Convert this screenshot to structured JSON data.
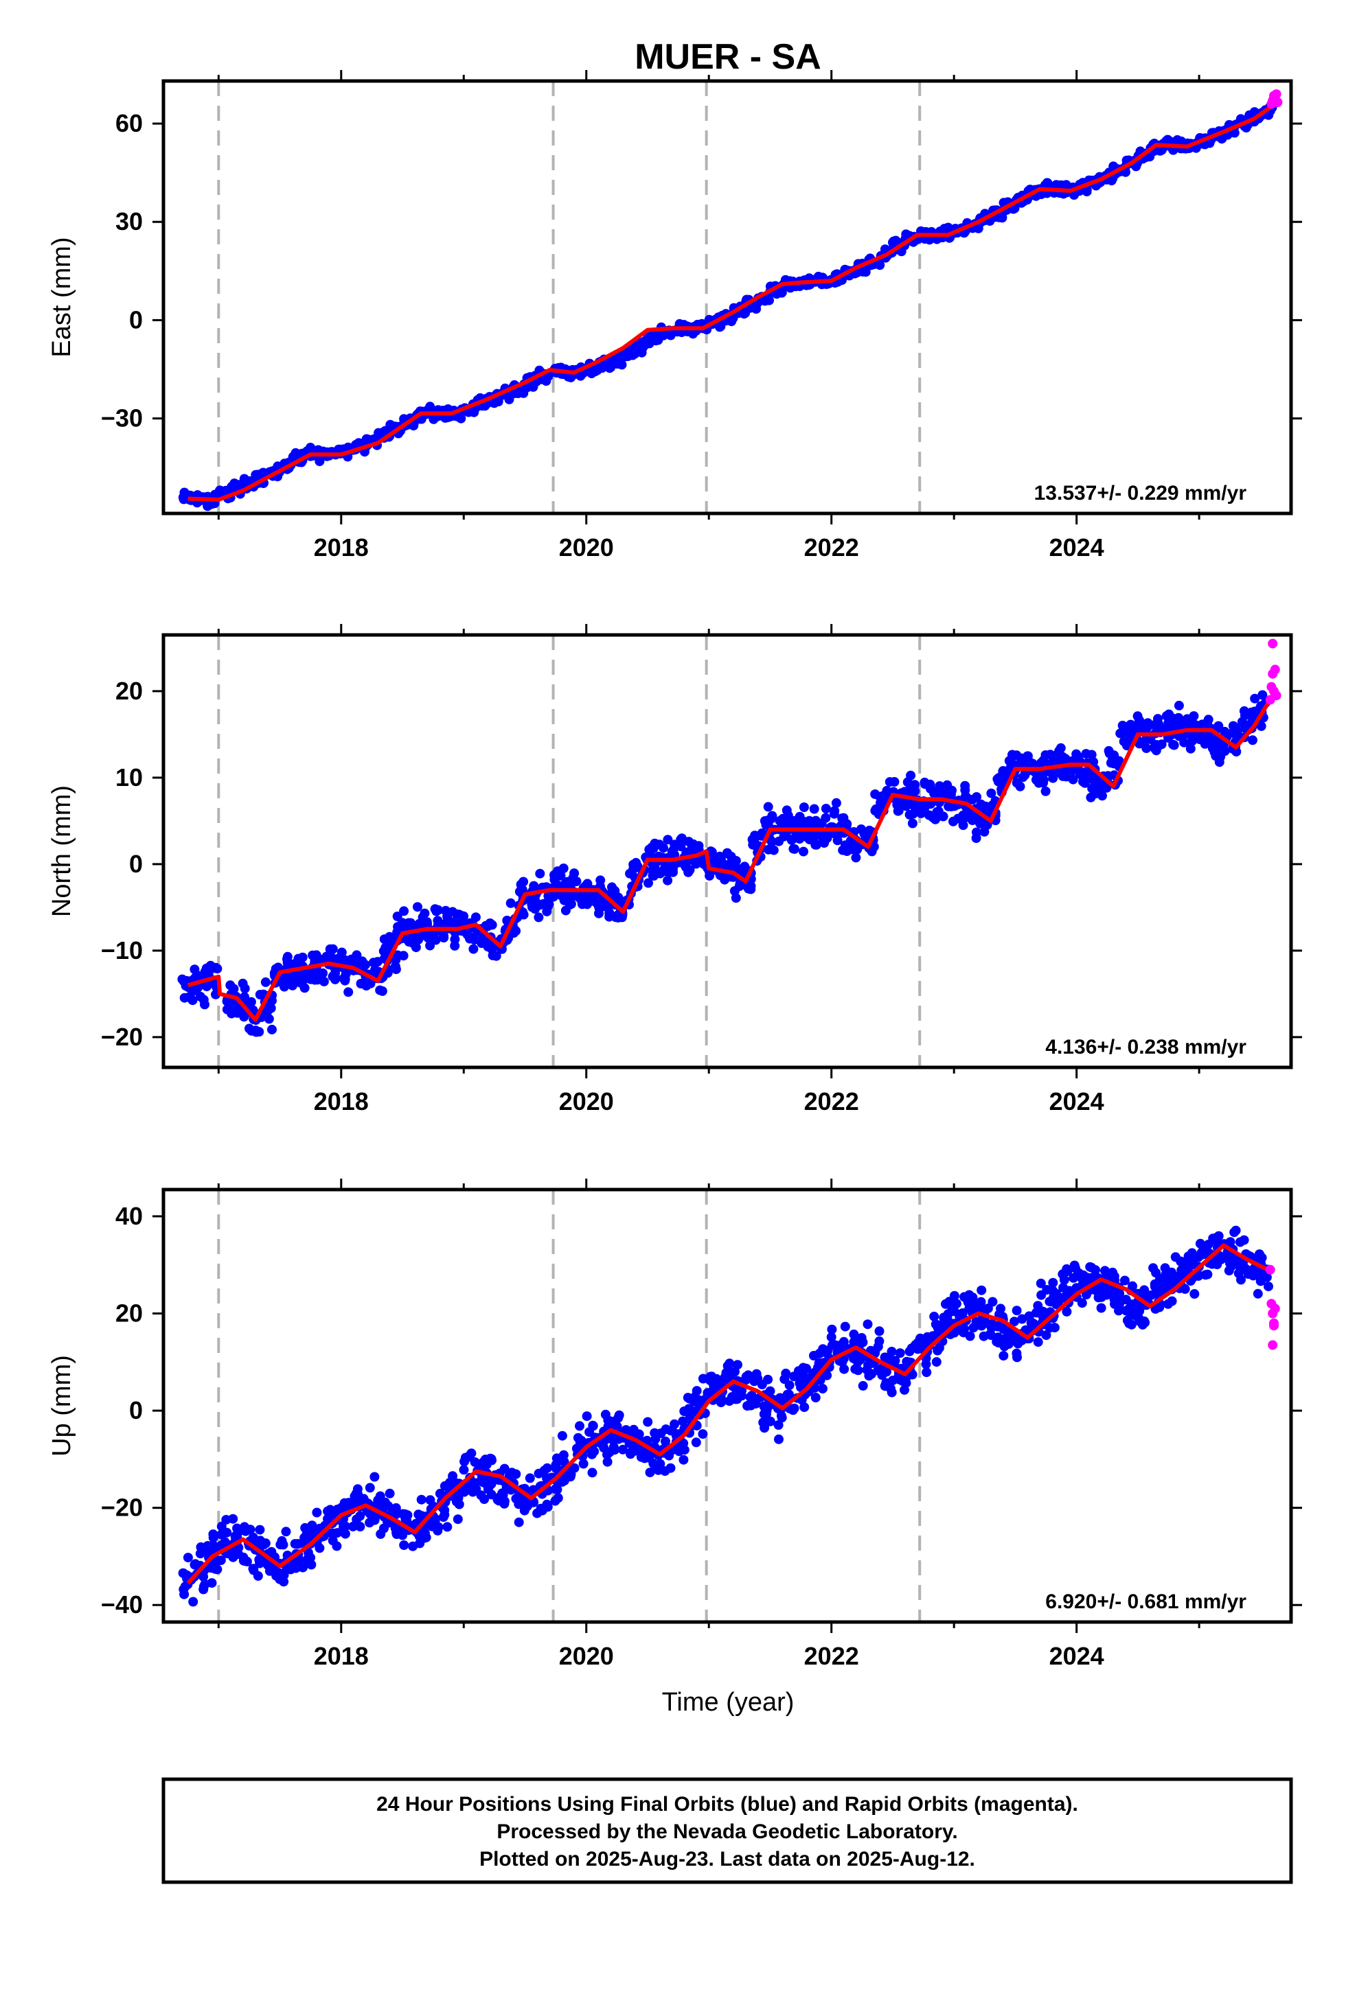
{
  "chart_data": {
    "type": "scatter",
    "title": "MUER - SA",
    "xlabel": "Time (year)",
    "xlim": [
      2016.55,
      2025.75
    ],
    "x_ticks": [
      2018,
      2020,
      2022,
      2024
    ],
    "x_tick_labels": [
      "2018",
      "2020",
      "2022",
      "2024"
    ],
    "event_lines_x": [
      2017.0,
      2019.73,
      2020.98,
      2022.72
    ],
    "legend": "none",
    "grid": false,
    "colors": {
      "final": "#0000ff",
      "rapid": "#ff00ff",
      "fit": "#ff0000",
      "event_line": "#b3b3b3"
    },
    "panels": [
      {
        "ylabel": "East (mm)",
        "ylim": [
          -59,
          73
        ],
        "y_ticks": [
          -30,
          0,
          30,
          60
        ],
        "y_tick_labels": [
          "−30",
          "0",
          "30",
          "60"
        ],
        "rate_label": "13.537+/- 0.229 mm/yr",
        "fit_x": [
          2016.75,
          2017.0,
          2017.2,
          2017.4,
          2017.6,
          2017.75,
          2018.0,
          2018.3,
          2018.65,
          2018.9,
          2019.2,
          2019.5,
          2019.7,
          2019.9,
          2020.1,
          2020.3,
          2020.5,
          2020.7,
          2020.95,
          2021.2,
          2021.4,
          2021.6,
          2021.75,
          2022.0,
          2022.2,
          2022.45,
          2022.7,
          2022.95,
          2023.2,
          2023.45,
          2023.7,
          2023.95,
          2024.2,
          2024.45,
          2024.65,
          2024.9,
          2025.2,
          2025.45,
          2025.6
        ],
        "fit_y": [
          -54.5,
          -54.8,
          -52.0,
          -48.0,
          -44.0,
          -41.0,
          -41.0,
          -37.5,
          -28.5,
          -28.5,
          -24.0,
          -19.0,
          -15.2,
          -16.0,
          -12.5,
          -8.5,
          -3.0,
          -2.5,
          -2.5,
          2.5,
          7.0,
          11.0,
          11.5,
          12.0,
          16.0,
          20.0,
          26.0,
          26.0,
          30.0,
          35.0,
          40.0,
          39.5,
          43.0,
          48.0,
          53.5,
          53.0,
          57.5,
          61.5,
          65.5
        ],
        "data_x": [
          2016.75,
          2016.85,
          2016.95,
          2017.05,
          2017.15,
          2017.25,
          2017.35,
          2017.45,
          2017.55,
          2017.65,
          2017.75,
          2017.85,
          2017.95,
          2018.05,
          2018.15,
          2018.25,
          2018.35,
          2018.45,
          2018.55,
          2018.65,
          2018.75,
          2018.85,
          2018.95,
          2019.05,
          2019.15,
          2019.25,
          2019.35,
          2019.45,
          2019.55,
          2019.65,
          2019.75,
          2019.85,
          2019.95,
          2020.05,
          2020.15,
          2020.25,
          2020.35,
          2020.45,
          2020.55,
          2020.65,
          2020.75,
          2020.85,
          2020.95,
          2021.05,
          2021.15,
          2021.25,
          2021.35,
          2021.45,
          2021.55,
          2021.65,
          2021.75,
          2021.85,
          2021.95,
          2022.05,
          2022.15,
          2022.25,
          2022.35,
          2022.45,
          2022.55,
          2022.65,
          2022.75,
          2022.85,
          2022.95,
          2023.05,
          2023.15,
          2023.25,
          2023.35,
          2023.45,
          2023.55,
          2023.65,
          2023.75,
          2023.85,
          2023.95,
          2024.05,
          2024.15,
          2024.25,
          2024.35,
          2024.45,
          2024.55,
          2024.65,
          2024.75,
          2024.85,
          2024.95,
          2025.05,
          2025.15,
          2025.25,
          2025.35,
          2025.45,
          2025.55
        ],
        "data_y": [
          -54.2,
          -54.6,
          -55.0,
          -53.1,
          -51.4,
          -49.8,
          -48.2,
          -46.1,
          -44.3,
          -42.0,
          -40.8,
          -41.2,
          -40.5,
          -39.7,
          -38.4,
          -37.0,
          -35.1,
          -33.2,
          -31.0,
          -28.9,
          -28.2,
          -28.6,
          -28.1,
          -27.0,
          -25.3,
          -23.9,
          -22.4,
          -20.6,
          -18.8,
          -16.9,
          -15.4,
          -15.8,
          -16.2,
          -15.0,
          -13.6,
          -11.9,
          -10.3,
          -8.2,
          -5.9,
          -3.7,
          -2.6,
          -2.7,
          -2.4,
          -0.9,
          0.9,
          2.6,
          4.5,
          6.8,
          8.9,
          10.7,
          11.4,
          11.7,
          11.9,
          12.8,
          14.6,
          16.0,
          17.7,
          20.1,
          22.6,
          24.9,
          26.1,
          25.9,
          26.2,
          27.4,
          28.8,
          30.5,
          32.4,
          34.8,
          37.0,
          39.2,
          40.1,
          39.8,
          39.6,
          40.7,
          42.3,
          44.1,
          46.0,
          48.1,
          50.5,
          52.9,
          53.6,
          53.3,
          53.2,
          54.6,
          56.4,
          58.1,
          60.0,
          61.8,
          63.9
        ],
        "rapid_x": [
          2025.59,
          2025.6,
          2025.61,
          2025.62,
          2025.63,
          2025.64
        ],
        "rapid_y": [
          66.0,
          67.0,
          68.5,
          67.5,
          69.0,
          66.5
        ]
      },
      {
        "ylabel": "North (mm)",
        "ylim": [
          -23.5,
          26.5
        ],
        "y_ticks": [
          -20,
          -10,
          0,
          10,
          20
        ],
        "y_tick_labels": [
          "−20",
          "−10",
          "0",
          "10",
          "20"
        ],
        "rate_label": "4.136+/- 0.238 mm/yr",
        "fit_x": [
          2016.75,
          2017.0,
          2017.01,
          2017.15,
          2017.3,
          2017.5,
          2017.7,
          2017.9,
          2018.1,
          2018.3,
          2018.5,
          2018.7,
          2018.95,
          2019.1,
          2019.3,
          2019.5,
          2019.7,
          2019.9,
          2020.1,
          2020.3,
          2020.5,
          2020.7,
          2020.9,
          2020.98,
          2021.0,
          2021.2,
          2021.3,
          2021.5,
          2021.7,
          2021.9,
          2022.1,
          2022.3,
          2022.5,
          2022.72,
          2022.9,
          2023.1,
          2023.3,
          2023.5,
          2023.7,
          2023.95,
          2024.1,
          2024.3,
          2024.5,
          2024.7,
          2024.9,
          2025.1,
          2025.3,
          2025.45,
          2025.6
        ],
        "fit_y": [
          -14.0,
          -13.0,
          -15.0,
          -15.5,
          -18.0,
          -12.5,
          -12.0,
          -11.5,
          -12.0,
          -13.5,
          -8.0,
          -7.5,
          -7.5,
          -7.0,
          -9.5,
          -3.5,
          -3.0,
          -3.0,
          -3.0,
          -5.5,
          0.5,
          0.5,
          1.0,
          1.5,
          -0.5,
          -1.0,
          -2.0,
          4.0,
          4.0,
          4.0,
          4.0,
          2.0,
          8.0,
          7.5,
          7.5,
          7.0,
          5.0,
          11.0,
          11.0,
          11.5,
          11.5,
          9.0,
          15.0,
          15.0,
          15.5,
          15.5,
          13.5,
          16.0,
          19.5
        ],
        "data_x": [
          2016.75,
          2016.85,
          2016.95,
          2017.1,
          2017.2,
          2017.3,
          2017.4,
          2017.5,
          2017.6,
          2017.7,
          2017.8,
          2017.9,
          2018.0,
          2018.1,
          2018.2,
          2018.3,
          2018.4,
          2018.5,
          2018.6,
          2018.7,
          2018.8,
          2018.9,
          2019.0,
          2019.1,
          2019.2,
          2019.3,
          2019.4,
          2019.5,
          2019.6,
          2019.7,
          2019.8,
          2019.9,
          2020.0,
          2020.1,
          2020.2,
          2020.3,
          2020.4,
          2020.5,
          2020.6,
          2020.7,
          2020.8,
          2020.9,
          2021.0,
          2021.1,
          2021.2,
          2021.3,
          2021.4,
          2021.5,
          2021.6,
          2021.7,
          2021.8,
          2021.9,
          2022.0,
          2022.1,
          2022.2,
          2022.3,
          2022.4,
          2022.5,
          2022.6,
          2022.7,
          2022.8,
          2022.9,
          2023.0,
          2023.1,
          2023.2,
          2023.3,
          2023.4,
          2023.5,
          2023.6,
          2023.7,
          2023.8,
          2023.9,
          2024.0,
          2024.1,
          2024.2,
          2024.3,
          2024.4,
          2024.5,
          2024.6,
          2024.7,
          2024.8,
          2024.9,
          2025.0,
          2025.1,
          2025.2,
          2025.3,
          2025.4,
          2025.5
        ],
        "data_y": [
          -14.2,
          -13.6,
          -13.4,
          -15.8,
          -16.5,
          -17.6,
          -16.2,
          -13.1,
          -12.4,
          -12.2,
          -11.8,
          -11.6,
          -11.9,
          -12.3,
          -13.0,
          -12.8,
          -10.2,
          -8.1,
          -7.6,
          -7.4,
          -7.7,
          -7.5,
          -7.1,
          -7.4,
          -8.6,
          -9.2,
          -7.0,
          -3.9,
          -3.2,
          -3.1,
          -2.9,
          -3.2,
          -3.0,
          -3.4,
          -4.3,
          -4.9,
          -1.6,
          0.4,
          0.7,
          0.5,
          0.8,
          1.2,
          0.2,
          -0.8,
          -1.5,
          -1.6,
          1.8,
          3.7,
          4.2,
          3.9,
          4.1,
          3.8,
          4.3,
          3.6,
          2.1,
          2.9,
          7.1,
          7.8,
          7.6,
          7.4,
          7.2,
          7.5,
          7.3,
          6.6,
          5.4,
          6.1,
          9.8,
          10.9,
          11.2,
          10.8,
          11.4,
          11.6,
          11.2,
          10.6,
          9.5,
          11.8,
          14.6,
          15.2,
          14.8,
          15.3,
          15.6,
          15.4,
          15.7,
          14.6,
          13.8,
          14.2,
          15.9,
          17.8
        ],
        "rapid_x": [
          2025.58,
          2025.59,
          2025.6,
          2025.61,
          2025.62,
          2025.63,
          2025.6
        ],
        "rapid_y": [
          19.0,
          20.5,
          22.0,
          20.0,
          22.5,
          19.5,
          25.5
        ]
      },
      {
        "ylabel": "Up (mm)",
        "ylim": [
          -43.5,
          45.5
        ],
        "y_ticks": [
          -40,
          -20,
          0,
          20,
          40
        ],
        "y_tick_labels": [
          "−40",
          "−20",
          "0",
          "20",
          "40"
        ],
        "rate_label": "6.920+/- 0.681 mm/yr",
        "fit_x": [
          2016.75,
          2016.95,
          2017.2,
          2017.5,
          2017.75,
          2018.0,
          2018.2,
          2018.4,
          2018.6,
          2018.85,
          2019.1,
          2019.3,
          2019.55,
          2019.75,
          2020.0,
          2020.2,
          2020.4,
          2020.6,
          2020.8,
          2021.0,
          2021.2,
          2021.4,
          2021.6,
          2021.8,
          2022.0,
          2022.2,
          2022.4,
          2022.6,
          2022.8,
          2023.0,
          2023.2,
          2023.4,
          2023.6,
          2023.8,
          2024.0,
          2024.2,
          2024.4,
          2024.6,
          2024.8,
          2025.0,
          2025.2,
          2025.4,
          2025.6
        ],
        "fit_y": [
          -35.5,
          -30.0,
          -26.5,
          -32.0,
          -27.5,
          -21.5,
          -19.5,
          -22.0,
          -25.0,
          -18.0,
          -12.5,
          -13.5,
          -18.0,
          -14.0,
          -7.5,
          -4.0,
          -6.0,
          -9.0,
          -5.0,
          2.0,
          6.0,
          4.0,
          0.5,
          4.5,
          10.5,
          13.0,
          10.0,
          7.5,
          13.0,
          17.5,
          20.0,
          18.5,
          15.0,
          19.5,
          24.0,
          27.0,
          25.0,
          21.5,
          25.0,
          29.5,
          34.0,
          31.0,
          28.5
        ],
        "data_x": [
          2016.75,
          2016.85,
          2016.95,
          2017.05,
          2017.15,
          2017.25,
          2017.35,
          2017.45,
          2017.55,
          2017.65,
          2017.75,
          2017.85,
          2017.95,
          2018.05,
          2018.15,
          2018.25,
          2018.35,
          2018.45,
          2018.55,
          2018.65,
          2018.75,
          2018.85,
          2018.95,
          2019.05,
          2019.15,
          2019.25,
          2019.35,
          2019.45,
          2019.55,
          2019.65,
          2019.75,
          2019.85,
          2019.95,
          2020.05,
          2020.15,
          2020.25,
          2020.35,
          2020.45,
          2020.55,
          2020.65,
          2020.75,
          2020.85,
          2020.95,
          2021.05,
          2021.15,
          2021.25,
          2021.35,
          2021.45,
          2021.55,
          2021.65,
          2021.75,
          2021.85,
          2021.95,
          2022.05,
          2022.15,
          2022.25,
          2022.35,
          2022.45,
          2022.55,
          2022.65,
          2022.75,
          2022.85,
          2022.95,
          2023.05,
          2023.15,
          2023.25,
          2023.35,
          2023.45,
          2023.55,
          2023.65,
          2023.75,
          2023.85,
          2023.95,
          2024.05,
          2024.15,
          2024.25,
          2024.35,
          2024.45,
          2024.55,
          2024.65,
          2024.75,
          2024.85,
          2024.95,
          2025.05,
          2025.15,
          2025.25,
          2025.35,
          2025.45,
          2025.55
        ],
        "data_y": [
          -34.8,
          -31.9,
          -29.5,
          -27.6,
          -26.9,
          -27.8,
          -30.4,
          -31.9,
          -31.1,
          -29.6,
          -27.4,
          -24.9,
          -22.6,
          -21.0,
          -19.8,
          -20.0,
          -21.4,
          -23.3,
          -24.6,
          -23.9,
          -21.7,
          -18.8,
          -16.0,
          -13.8,
          -12.7,
          -13.4,
          -15.8,
          -17.5,
          -17.9,
          -16.6,
          -14.3,
          -11.5,
          -8.9,
          -6.8,
          -4.9,
          -4.2,
          -5.6,
          -7.9,
          -8.7,
          -7.4,
          -4.8,
          -1.9,
          1.2,
          3.8,
          5.6,
          5.5,
          3.1,
          0.9,
          1.0,
          2.9,
          4.8,
          7.3,
          9.9,
          11.8,
          12.7,
          11.9,
          9.9,
          8.0,
          7.8,
          9.9,
          12.6,
          15.0,
          17.3,
          19.0,
          20.1,
          19.6,
          17.4,
          15.4,
          15.8,
          17.9,
          20.1,
          22.2,
          24.0,
          25.8,
          26.9,
          26.3,
          24.1,
          21.9,
          22.1,
          24.1,
          25.9,
          28.0,
          30.1,
          32.2,
          33.6,
          32.9,
          30.7,
          29.3,
          28.8
        ],
        "rapid_x": [
          2025.58,
          2025.59,
          2025.6,
          2025.61,
          2025.62,
          2025.6,
          2025.61
        ],
        "rapid_y": [
          29.0,
          22.0,
          20.0,
          18.0,
          21.0,
          13.5,
          17.5
        ]
      }
    ],
    "footer_lines": [
      "24 Hour Positions Using Final Orbits (blue) and Rapid Orbits (magenta).",
      "Processed by the Nevada Geodetic Laboratory.",
      "Plotted on 2025-Aug-23. Last data on 2025-Aug-12."
    ]
  }
}
